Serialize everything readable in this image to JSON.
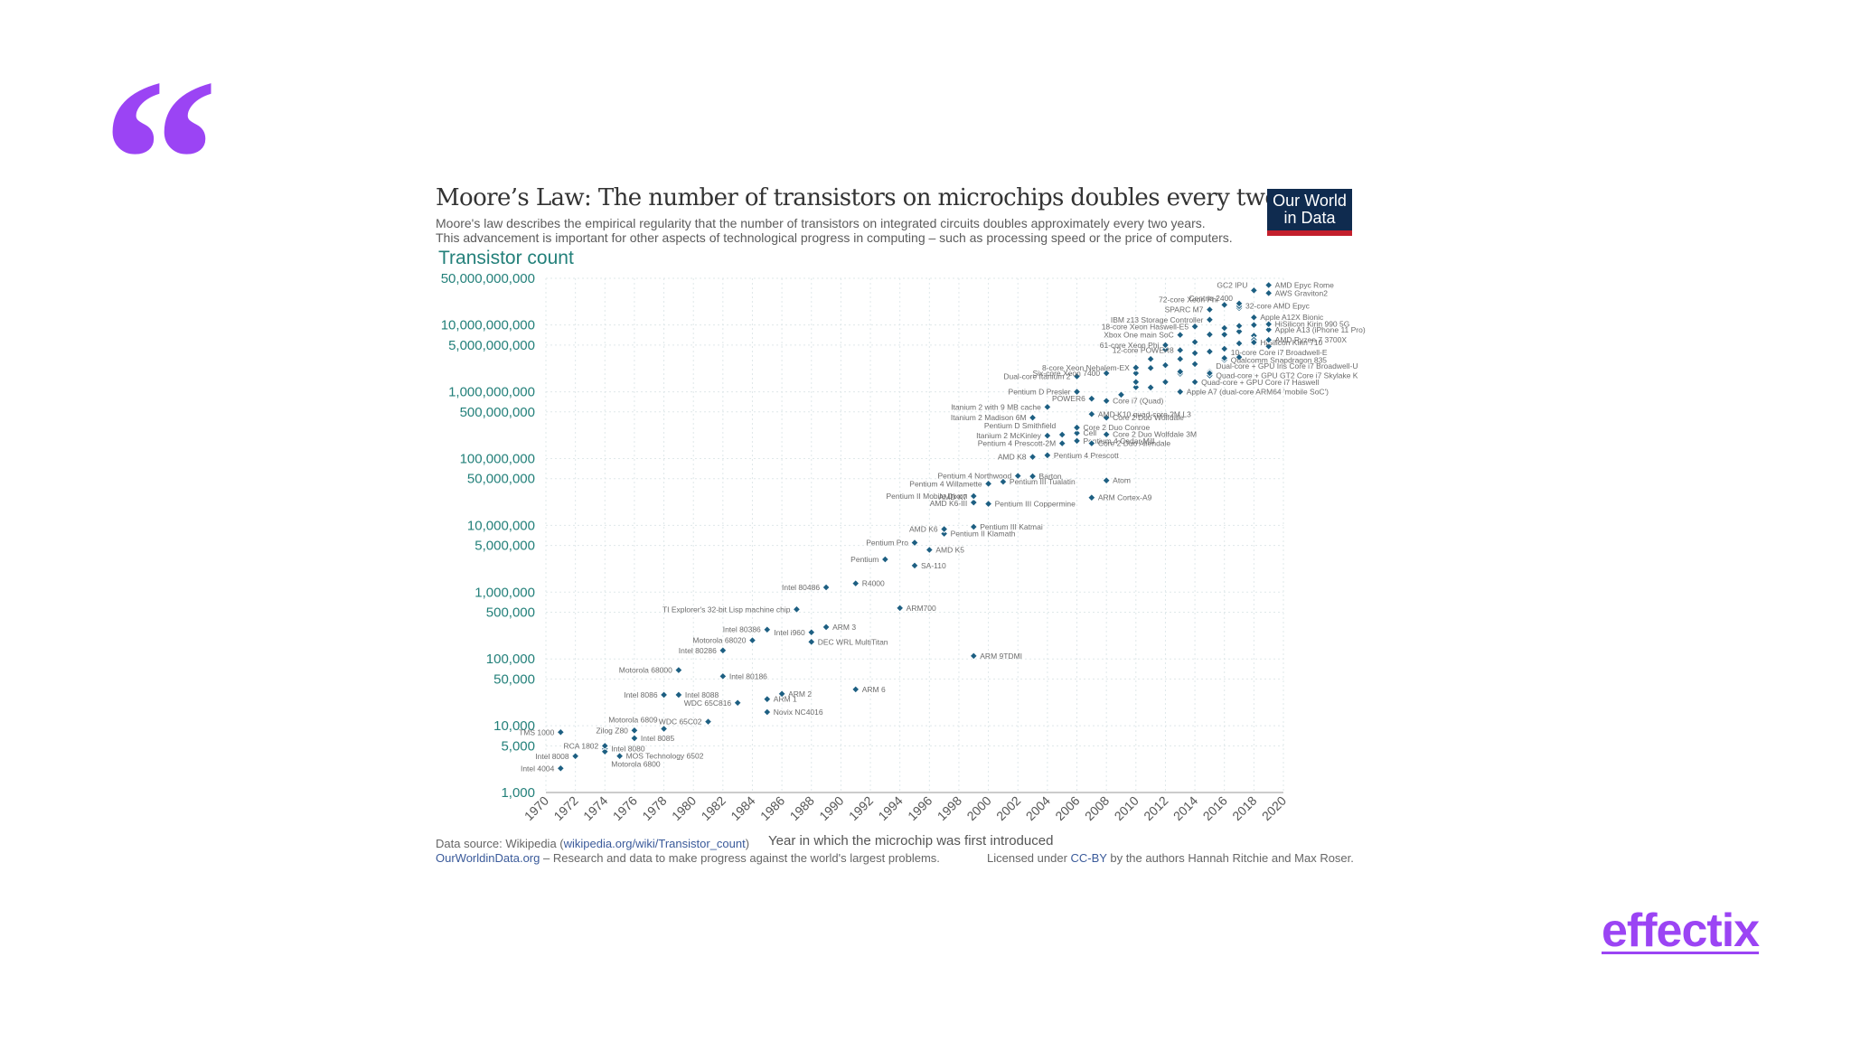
{
  "decor": {
    "quote_symbol": "“",
    "brand": "effectix",
    "accent_color": "#9b44f4"
  },
  "header": {
    "title": "Moore’s Law: The number of transistors on microchips doubles every two years",
    "subtitle_1": "Moore's law describes the empirical regularity that the number of transistors on integrated circuits doubles approximately every two years.",
    "subtitle_2": "This advancement is important for other aspects of technological progress in computing – such as processing speed or the price of computers.",
    "logo_line_1": "Our World",
    "logo_line_2": "in Data"
  },
  "footer": {
    "source_prefix": "Data source: Wikipedia (",
    "source_link": "wikipedia.org/wiki/Transistor_count",
    "source_suffix": ")",
    "owid_link": "OurWorldinData.org",
    "owid_text": " – Research and data to make progress against the world's largest problems.",
    "license_prefix": "Licensed under ",
    "license_link": "CC-BY",
    "license_suffix": " by the authors Hannah Ritchie and Max Roser."
  },
  "chart_data": {
    "type": "scatter",
    "title": "Moore’s Law: The number of transistors on microchips doubles every two years",
    "ylabel": "Transistor count",
    "xlabel": "Year in which the microchip was first introduced",
    "xlim": [
      1970,
      2020
    ],
    "ylim": [
      1000,
      50000000000
    ],
    "y_scale": "log",
    "x_ticks": [
      1970,
      1972,
      1974,
      1976,
      1978,
      1980,
      1982,
      1984,
      1986,
      1988,
      1990,
      1992,
      1994,
      1996,
      1998,
      2000,
      2002,
      2004,
      2006,
      2008,
      2010,
      2012,
      2014,
      2016,
      2018,
      2020
    ],
    "y_ticks": [
      {
        "value": 1000,
        "label": "1,000"
      },
      {
        "value": 5000,
        "label": "5,000"
      },
      {
        "value": 10000,
        "label": "10,000"
      },
      {
        "value": 50000,
        "label": "50,000"
      },
      {
        "value": 100000,
        "label": "100,000"
      },
      {
        "value": 500000,
        "label": "500,000"
      },
      {
        "value": 1000000,
        "label": "1,000,000"
      },
      {
        "value": 5000000,
        "label": "5,000,000"
      },
      {
        "value": 10000000,
        "label": "10,000,000"
      },
      {
        "value": 50000000,
        "label": "50,000,000"
      },
      {
        "value": 100000000,
        "label": "100,000,000"
      },
      {
        "value": 500000000,
        "label": "500,000,000"
      },
      {
        "value": 1000000000,
        "label": "1,000,000,000"
      },
      {
        "value": 5000000000,
        "label": "5,000,000,000"
      },
      {
        "value": 10000000000,
        "label": "10,000,000,000"
      },
      {
        "value": 50000000000,
        "label": "50,000,000,000"
      }
    ],
    "grid": true,
    "point_color": "#1d5f82",
    "axis_text_color": "#23807a",
    "points": [
      {
        "label": "Intel 4004",
        "x": 1971,
        "y": 2300,
        "side": "left"
      },
      {
        "label": "Intel 8008",
        "x": 1972,
        "y": 3500,
        "side": "left"
      },
      {
        "label": "TMS 1000",
        "x": 1971,
        "y": 8000,
        "side": "left"
      },
      {
        "label": "Intel 8080",
        "x": 1974,
        "y": 4500,
        "side": "right"
      },
      {
        "label": "Motorola 6800",
        "x": 1974,
        "y": 4100,
        "side": "right",
        "dy": 14
      },
      {
        "label": "MOS Technology 6502",
        "x": 1975,
        "y": 3510,
        "side": "right"
      },
      {
        "label": "RCA 1802",
        "x": 1974,
        "y": 5000,
        "side": "left"
      },
      {
        "label": "Intel 8085",
        "x": 1976,
        "y": 6500,
        "side": "right"
      },
      {
        "label": "Zilog Z80",
        "x": 1976,
        "y": 8500,
        "side": "left"
      },
      {
        "label": "Motorola 6809",
        "x": 1978,
        "y": 9000,
        "side": "left",
        "dy": -10
      },
      {
        "label": "Intel 8086",
        "x": 1978,
        "y": 29000,
        "side": "left"
      },
      {
        "label": "Intel 8088",
        "x": 1979,
        "y": 29000,
        "side": "right"
      },
      {
        "label": "Motorola 68000",
        "x": 1979,
        "y": 68000,
        "side": "left"
      },
      {
        "label": "WDC 65C02",
        "x": 1981,
        "y": 11500,
        "side": "left"
      },
      {
        "label": "Intel 80186",
        "x": 1982,
        "y": 55000,
        "side": "right"
      },
      {
        "label": "Intel 80286",
        "x": 1982,
        "y": 134000,
        "side": "left"
      },
      {
        "label": "WDC 65C816",
        "x": 1983,
        "y": 22000,
        "side": "left"
      },
      {
        "label": "Motorola 68020",
        "x": 1984,
        "y": 190000,
        "side": "left"
      },
      {
        "label": "Intel 80386",
        "x": 1985,
        "y": 275000,
        "side": "left"
      },
      {
        "label": "ARM 1",
        "x": 1985,
        "y": 25000,
        "side": "right"
      },
      {
        "label": "Novix NC4016",
        "x": 1985,
        "y": 16000,
        "side": "right"
      },
      {
        "label": "ARM 2",
        "x": 1986,
        "y": 30000,
        "side": "right"
      },
      {
        "label": "TI Explorer's 32-bit Lisp machine chip",
        "x": 1987,
        "y": 553000,
        "side": "left"
      },
      {
        "label": "Intel i960",
        "x": 1988,
        "y": 250000,
        "side": "left"
      },
      {
        "label": "DEC WRL MultiTitan",
        "x": 1988,
        "y": 180000,
        "side": "right"
      },
      {
        "label": "ARM 3",
        "x": 1989,
        "y": 300000,
        "side": "right"
      },
      {
        "label": "Intel 80486",
        "x": 1989,
        "y": 1180000,
        "side": "left"
      },
      {
        "label": "R4000",
        "x": 1991,
        "y": 1350000,
        "side": "right"
      },
      {
        "label": "ARM 6",
        "x": 1991,
        "y": 35000,
        "side": "right"
      },
      {
        "label": "ARM700",
        "x": 1994,
        "y": 578000,
        "side": "right"
      },
      {
        "label": "Pentium",
        "x": 1993,
        "y": 3100000,
        "side": "left"
      },
      {
        "label": "SA-110",
        "x": 1995,
        "y": 2500000,
        "side": "right"
      },
      {
        "label": "AMD K5",
        "x": 1996,
        "y": 4300000,
        "side": "right"
      },
      {
        "label": "Pentium Pro",
        "x": 1995,
        "y": 5500000,
        "side": "left"
      },
      {
        "label": "Pentium II Klamath",
        "x": 1997,
        "y": 7500000,
        "side": "right"
      },
      {
        "label": "AMD K6",
        "x": 1997,
        "y": 8800000,
        "side": "left"
      },
      {
        "label": "Pentium III Katmai",
        "x": 1999,
        "y": 9500000,
        "side": "right"
      },
      {
        "label": "AMD K6-III",
        "x": 1999,
        "y": 21300000,
        "side": "left"
      },
      {
        "label": "AMD K7",
        "x": 1999,
        "y": 22000000,
        "side": "left",
        "dy": -6
      },
      {
        "label": "Pentium III Coppermine",
        "x": 2000,
        "y": 21000000,
        "side": "right"
      },
      {
        "label": "Pentium II Mobile Dixon",
        "x": 1999,
        "y": 27400000,
        "side": "left"
      },
      {
        "label": "ARM 9TDMI",
        "x": 1999,
        "y": 111000,
        "side": "right"
      },
      {
        "label": "Pentium 4 Willamette",
        "x": 2000,
        "y": 42000000,
        "side": "left"
      },
      {
        "label": "Pentium III Tualatin",
        "x": 2001,
        "y": 45000000,
        "side": "right"
      },
      {
        "label": "Pentium 4 Northwood",
        "x": 2002,
        "y": 55000000,
        "side": "left"
      },
      {
        "label": "Barton",
        "x": 2003,
        "y": 54300000,
        "side": "right"
      },
      {
        "label": "AMD K8",
        "x": 2003,
        "y": 105900000,
        "side": "left"
      },
      {
        "label": "Pentium 4 Prescott",
        "x": 2004,
        "y": 112000000,
        "side": "right"
      },
      {
        "label": "Atom",
        "x": 2008,
        "y": 47000000,
        "side": "right"
      },
      {
        "label": "ARM Cortex-A9",
        "x": 2007,
        "y": 26000000,
        "side": "right"
      },
      {
        "label": "Pentium 4 Prescott-2M",
        "x": 2005,
        "y": 169000000,
        "side": "left"
      },
      {
        "label": "Pentium 4 Cedar Mill",
        "x": 2006,
        "y": 184000000,
        "side": "right"
      },
      {
        "label": "Itanium 2 McKinley",
        "x": 2004,
        "y": 220000000,
        "side": "left"
      },
      {
        "label": "Core 2 Duo Allendale",
        "x": 2007,
        "y": 169000000,
        "side": "right"
      },
      {
        "label": "Core 2 Duo Wolfdale 3M",
        "x": 2008,
        "y": 230000000,
        "side": "right"
      },
      {
        "label": "Cell",
        "x": 2006,
        "y": 241000000,
        "side": "right"
      },
      {
        "label": "Core 2 Duo Conroe",
        "x": 2006,
        "y": 291000000,
        "side": "right"
      },
      {
        "label": "Pentium D Smithfield",
        "x": 2005,
        "y": 228000000,
        "side": "left",
        "dy": -10
      },
      {
        "label": "Itanium 2 Madison 6M",
        "x": 2003,
        "y": 410000000,
        "side": "left"
      },
      {
        "label": "Core 2 Duo Wolfdale",
        "x": 2008,
        "y": 410000000,
        "side": "right"
      },
      {
        "label": "AMD K10 quad-core 2M L3",
        "x": 2007,
        "y": 463000000,
        "side": "right"
      },
      {
        "label": "Itanium 2 with 9 MB cache",
        "x": 2004,
        "y": 592000000,
        "side": "left"
      },
      {
        "label": "Core i7 (Quad)",
        "x": 2008,
        "y": 731000000,
        "side": "right"
      },
      {
        "label": "POWER6",
        "x": 2007,
        "y": 789000000,
        "side": "left"
      },
      {
        "label": "Pentium D Presler",
        "x": 2006,
        "y": 1000000000,
        "side": "left"
      },
      {
        "label": "Apple A7 (dual-core ARM64 'mobile SoC')",
        "x": 2013,
        "y": 1000000000,
        "side": "right"
      },
      {
        "label": "Dual-core Itanium 2",
        "x": 2006,
        "y": 1700000000,
        "side": "left"
      },
      {
        "label": "Six-core Xeon 7400",
        "x": 2008,
        "y": 1900000000,
        "side": "left"
      },
      {
        "label": "Quad-core + GPU Core i7 Haswell",
        "x": 2014,
        "y": 1400000000,
        "side": "right"
      },
      {
        "label": "8-core Xeon Nehalem-EX",
        "x": 2010,
        "y": 2300000000,
        "side": "left"
      },
      {
        "label": "Quad-core + GPU GT2 Core i7 Skylake K",
        "x": 2015,
        "y": 1750000000,
        "side": "right"
      },
      {
        "label": "Dual-core + GPU Iris Core i7 Broadwell-U",
        "x": 2015,
        "y": 1900000000,
        "side": "right",
        "dy": -8
      },
      {
        "label": "Qualcomm Snapdragon 835",
        "x": 2016,
        "y": 3000000000,
        "side": "right"
      },
      {
        "label": "10-core Core i7 Broadwell-E",
        "x": 2016,
        "y": 3200000000,
        "side": "right",
        "dy": -6
      },
      {
        "label": "12-core POWER8",
        "x": 2013,
        "y": 4200000000,
        "side": "left"
      },
      {
        "label": "61-core Xeon Phi",
        "x": 2012,
        "y": 5000000000,
        "side": "left"
      },
      {
        "label": "HiSilicon Kirin 710",
        "x": 2018,
        "y": 5500000000,
        "side": "right"
      },
      {
        "label": "AMD Ryzen 7 3700X",
        "x": 2019,
        "y": 5990000000,
        "side": "right"
      },
      {
        "label": "Xbox One main SoC",
        "x": 2013,
        "y": 7100000000,
        "side": "left"
      },
      {
        "label": "Apple A13 (iPhone 11 Pro)",
        "x": 2019,
        "y": 8500000000,
        "side": "right"
      },
      {
        "label": "18-core Xeon Haswell-E5",
        "x": 2014,
        "y": 9500000000,
        "side": "left"
      },
      {
        "label": "HiSilicon Kirin 990 5G",
        "x": 2019,
        "y": 10300000000,
        "side": "right"
      },
      {
        "label": "IBM z13 Storage Controller",
        "x": 2015,
        "y": 12000000000,
        "side": "left"
      },
      {
        "label": "Apple A12X Bionic",
        "x": 2018,
        "y": 13000000000,
        "side": "right"
      },
      {
        "label": "SPARC M7",
        "x": 2015,
        "y": 17000000000,
        "side": "left"
      },
      {
        "label": "32-core AMD Epyc",
        "x": 2017,
        "y": 19200000000,
        "side": "right"
      },
      {
        "label": "72-core Xeon Phi",
        "x": 2016,
        "y": 20000000000,
        "side": "left",
        "dy": -6
      },
      {
        "label": "Centriq 2400",
        "x": 2017,
        "y": 21000000000,
        "side": "left",
        "dy": -6
      },
      {
        "label": "AWS Graviton2",
        "x": 2019,
        "y": 30000000000,
        "side": "right"
      },
      {
        "label": "GC2 IPU",
        "x": 2018,
        "y": 33000000000,
        "side": "left",
        "dy": -6
      },
      {
        "label": "AMD Epyc Rome",
        "x": 2019,
        "y": 39540000000,
        "side": "right"
      }
    ],
    "extra_points": [
      [
        2010,
        1170000000
      ],
      [
        2010,
        1400000000
      ],
      [
        2011,
        2270000000
      ],
      [
        2012,
        2500000000
      ],
      [
        2012,
        1400000000
      ],
      [
        2013,
        1860000000
      ],
      [
        2013,
        3100000000
      ],
      [
        2014,
        2600000000
      ],
      [
        2014,
        3800000000
      ],
      [
        2014,
        5560000000
      ],
      [
        2015,
        4000000000
      ],
      [
        2015,
        7200000000
      ],
      [
        2016,
        7200000000
      ],
      [
        2016,
        4400000000
      ],
      [
        2017,
        5300000000
      ],
      [
        2017,
        8000000000
      ],
      [
        2017,
        9700000000
      ],
      [
        2017,
        3300000000
      ],
      [
        2018,
        6900000000
      ],
      [
        2018,
        10000000000
      ],
      [
        2018,
        6000000000
      ],
      [
        2011,
        3100000000
      ],
      [
        2012,
        4300000000
      ],
      [
        2016,
        9000000000
      ],
      [
        2009,
        904000000
      ],
      [
        2010,
        1900000000
      ],
      [
        2011,
        1160000000
      ],
      [
        2015,
        2000000000
      ],
      [
        2013,
        2000000000
      ],
      [
        2017,
        18000000000
      ],
      [
        2019,
        4800000000
      ]
    ]
  }
}
